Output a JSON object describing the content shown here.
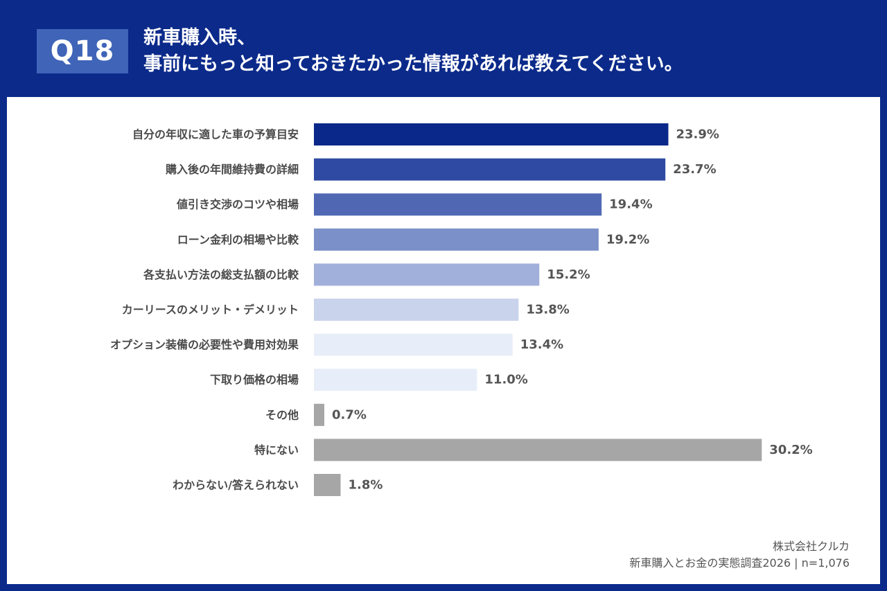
{
  "header": {
    "badge": "Q18",
    "title_line1": "新車購入時、",
    "title_line2": "事前にもっと知っておきたかった情報があれば教えてください。"
  },
  "footer": {
    "company": "株式会社クルカ",
    "survey": "新車購入とお金の実態調査2026 | n=1,076"
  },
  "colors": {
    "background": "#0b2a8a",
    "panel": "#ffffff",
    "gray_bar": "#a6a6a6"
  },
  "chart_data": {
    "type": "bar",
    "orientation": "horizontal",
    "categories": [
      "自分の年収に適した車の予算目安",
      "購入後の年間維持費の詳細",
      "値引き交渉のコツや相場",
      "ローン金利の相場や比較",
      "各支払い方法の総支払額の比較",
      "カーリースのメリット・デメリット",
      "オプション装備の必要性や費用対効果",
      "下取り価格の相場",
      "その他",
      "特にない",
      "わからない/答えられない"
    ],
    "values": [
      23.9,
      23.7,
      19.4,
      19.2,
      15.2,
      13.8,
      13.4,
      11.0,
      0.7,
      30.2,
      1.8
    ],
    "labels": [
      "23.9%",
      "23.7%",
      "19.4%",
      "19.2%",
      "15.2%",
      "13.8%",
      "13.4%",
      "11.0%",
      "0.7%",
      "30.2%",
      "1.8%"
    ],
    "colors": [
      "#0a2889",
      "#2e4aa2",
      "#5068b4",
      "#7b90c8",
      "#a1afdb",
      "#c9d3ec",
      "#e8eef9",
      "#e8eef9",
      "#a6a6a6",
      "#a6a6a6",
      "#a6a6a6"
    ],
    "unit": "%",
    "xlim": [
      0,
      33
    ],
    "grid": false,
    "legend": "none"
  }
}
